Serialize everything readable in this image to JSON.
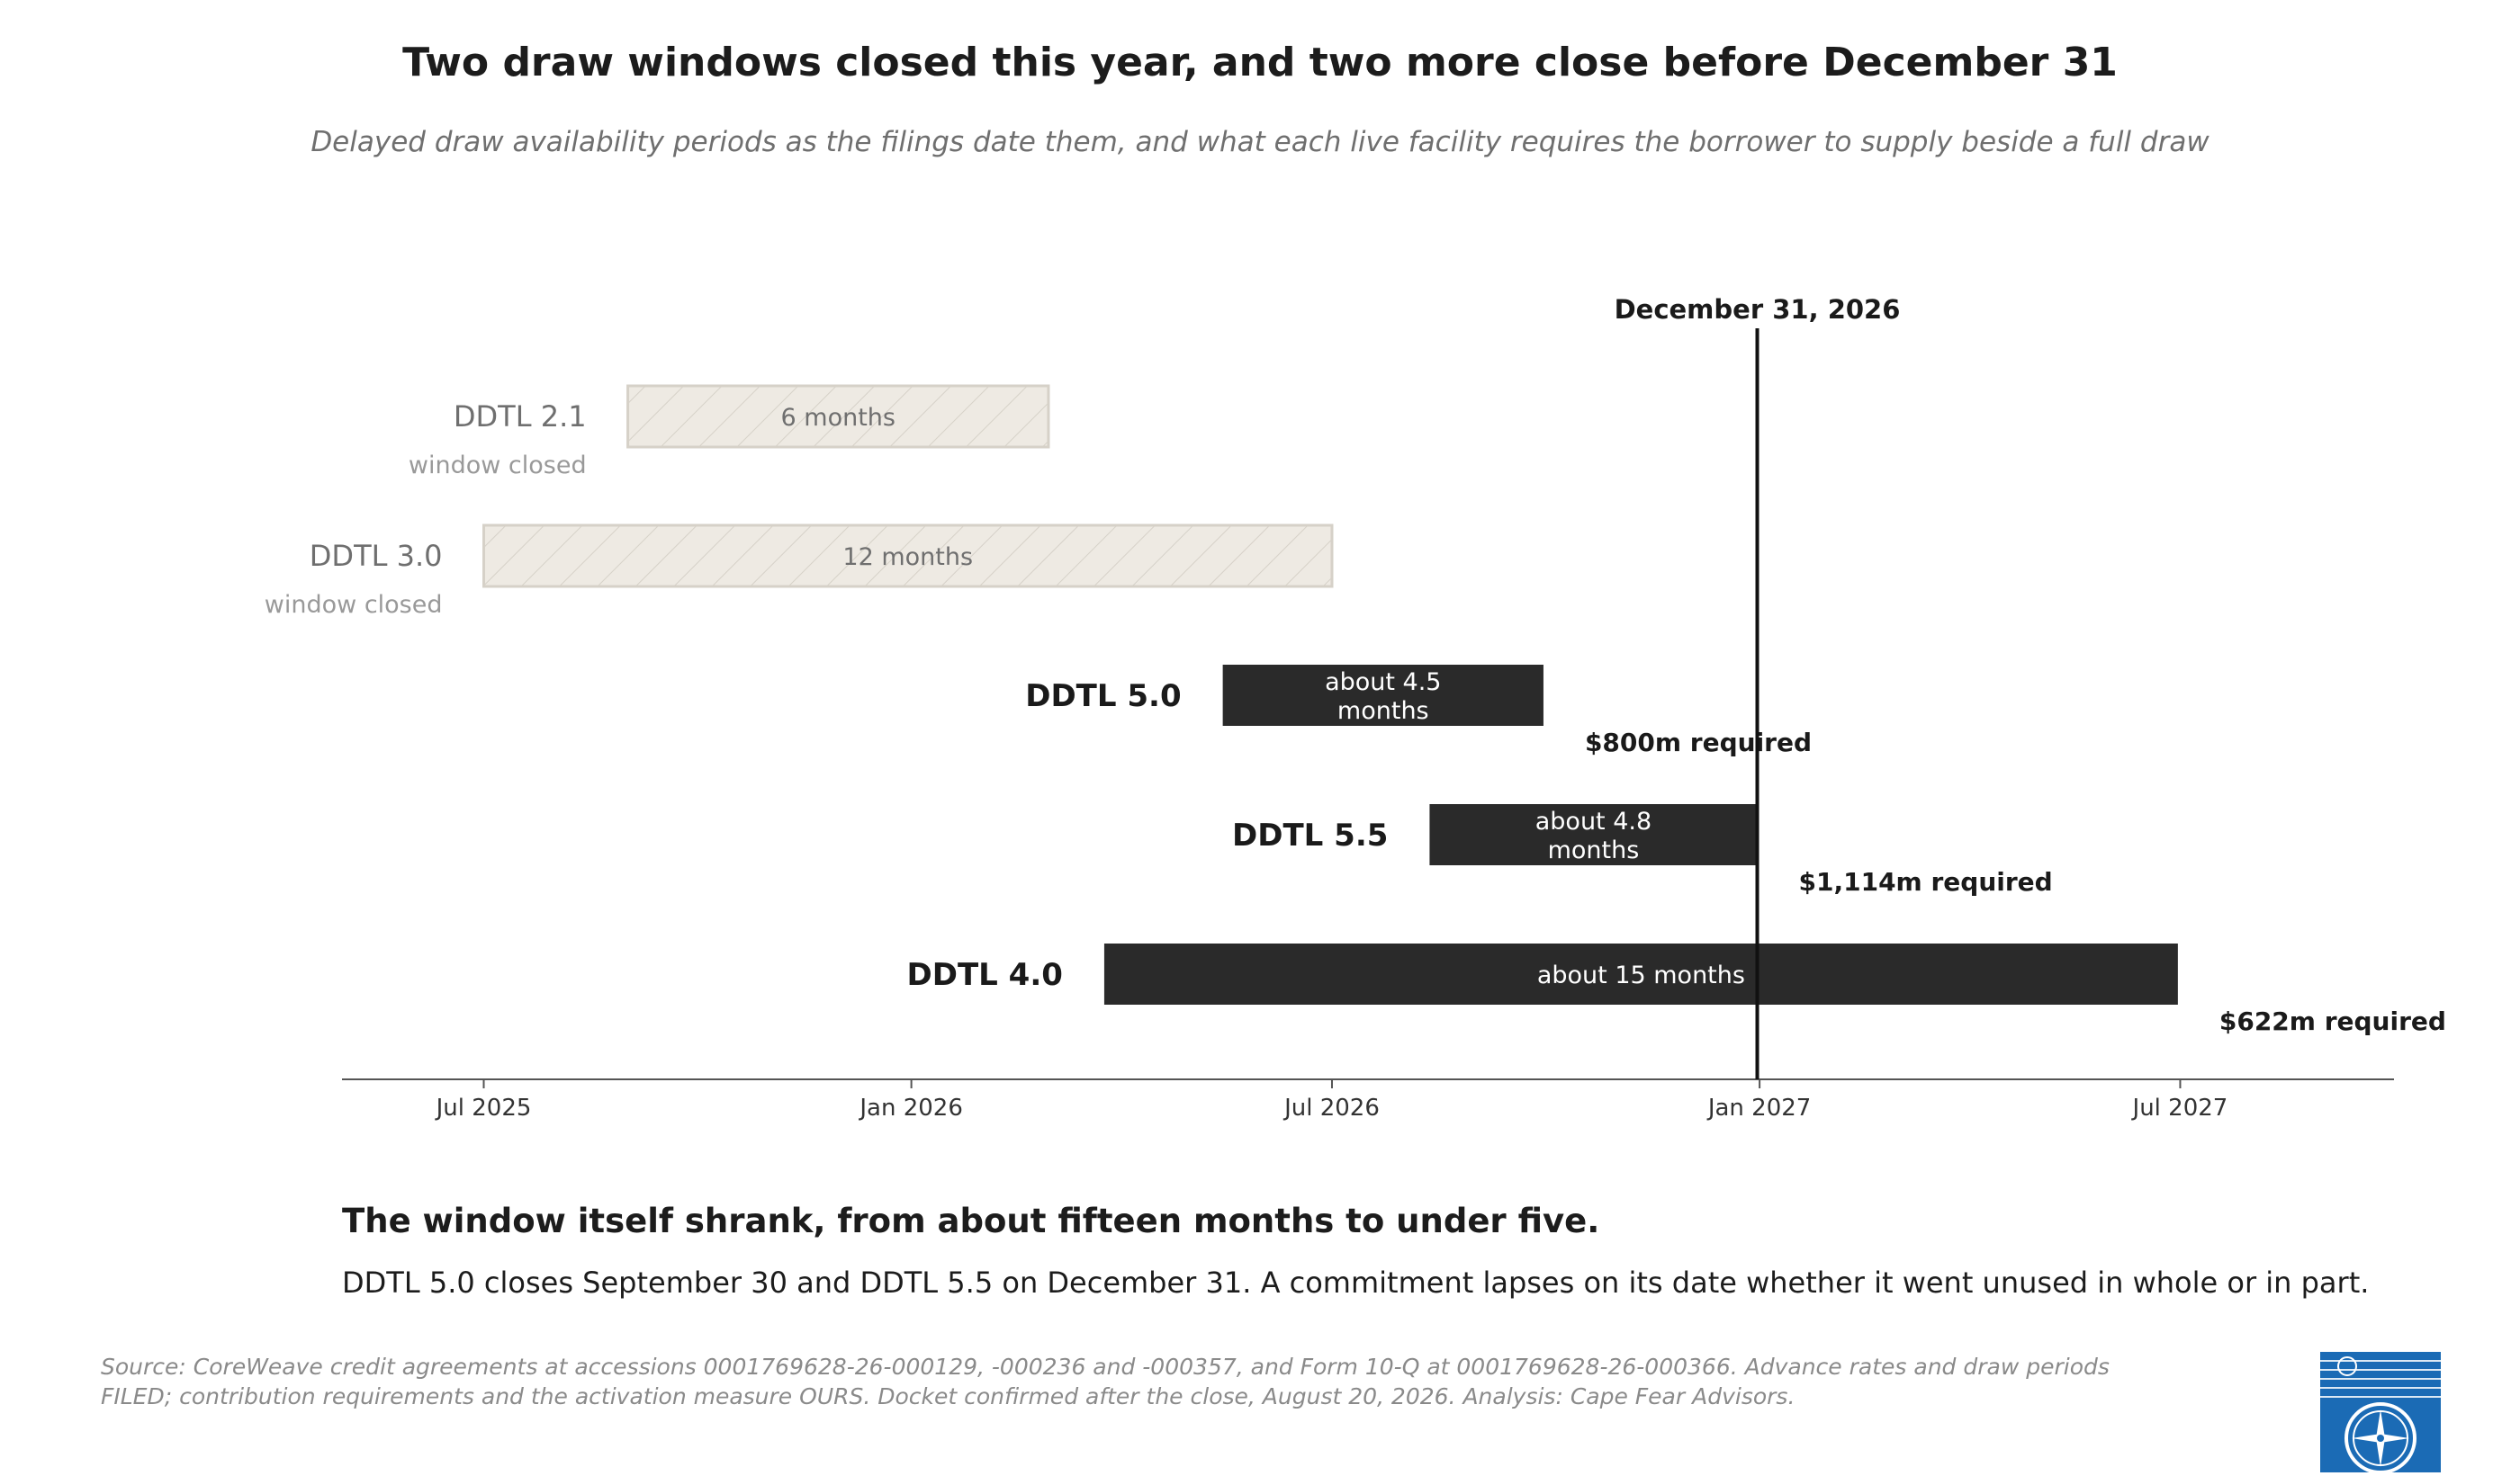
{
  "title": "Two draw windows closed this year, and two more close before December 31",
  "subtitle": "Delayed draw availability periods as the filings date them, and what each live facility requires the borrower to supply beside a full draw",
  "takeaway": "The window itself shrank, from about fifteen months to under five.",
  "explainer": "DDTL 5.0 closes September 30 and DDTL 5.5 on December 31. A commitment lapses on its date whether it went unused in whole or in part.",
  "source_line1": "Source: CoreWeave credit agreements at accessions 0001769628-26-000129, -000236 and -000357, and Form 10-Q at 0001769628-26-000366. Advance rates and draw periods",
  "source_line2": "FILED; contribution requirements and the activation measure OURS. Docket confirmed after the close, August 20, 2026. Analysis: Cape Fear Advisors.",
  "logo_icon": "compass-seal-icon",
  "colors": {
    "closed_fill": "#eeeae3",
    "closed_stroke": "#d6d1c8",
    "closed_label": "#6f6f6f",
    "closed_sublabel": "#999999",
    "live_fill": "#2a2a2a",
    "live_text": "#ffffff",
    "label_dark": "#1a1a1a",
    "axis": "#555555",
    "logo_blue": "#1b6bb5"
  },
  "chart_data": {
    "type": "gantt",
    "x_axis": {
      "type": "date",
      "range": [
        "2025-05-01",
        "2027-10-01"
      ],
      "ticks": [
        {
          "date": "2025-07-01",
          "label": "Jul 2025"
        },
        {
          "date": "2026-01-01",
          "label": "Jan 2026"
        },
        {
          "date": "2026-07-01",
          "label": "Jul 2026"
        },
        {
          "date": "2027-01-01",
          "label": "Jan 2027"
        },
        {
          "date": "2027-07-01",
          "label": "Jul 2027"
        }
      ]
    },
    "reference_line": {
      "date": "2026-12-31",
      "label": "December 31, 2026"
    },
    "series": [
      {
        "name": "DDTL 2.1",
        "status": "window closed",
        "start": "2025-09-01",
        "end": "2026-03-01",
        "duration_label": "6 months",
        "required": ""
      },
      {
        "name": "DDTL 3.0",
        "status": "window closed",
        "start": "2025-07-01",
        "end": "2026-07-01",
        "duration_label": "12 months",
        "required": ""
      },
      {
        "name": "DDTL 5.0",
        "status": "",
        "start": "2026-05-15",
        "end": "2026-09-30",
        "duration_label": "about 4.5 months",
        "required": "$800m required"
      },
      {
        "name": "DDTL 5.5",
        "status": "",
        "start": "2026-08-12",
        "end": "2026-12-31",
        "duration_label": "about 4.8 months",
        "required": "$1,114m required"
      },
      {
        "name": "DDTL 4.0",
        "status": "",
        "start": "2026-03-25",
        "end": "2027-06-30",
        "duration_label": "about 15 months",
        "required": "$622m required"
      }
    ]
  }
}
